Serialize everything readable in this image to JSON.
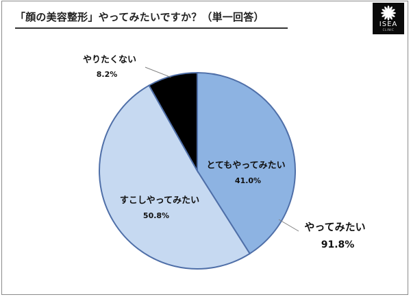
{
  "title": "「顔の美容整形」やってみたいですか？（単一回答）",
  "logo": {
    "text": "ISEA",
    "subtext": "CLINIC",
    "icon": "flower-icon"
  },
  "chart_data": {
    "type": "pie",
    "title": "「顔の美容整形」やってみたいですか？（単一回答）",
    "slices": [
      {
        "label": "とてもやってみたい",
        "value": 41.0,
        "value_label": "41.0%",
        "color": "#8db3e2"
      },
      {
        "label": "すこしやってみたい",
        "value": 50.8,
        "value_label": "50.8%",
        "color": "#c6d9f1"
      },
      {
        "label": "やりたくない",
        "value": 8.2,
        "value_label": "8.2%",
        "color": "#000000"
      }
    ],
    "group_annotation": {
      "label": "やってみたい",
      "value": 91.8,
      "value_label": "91.8%"
    },
    "start_angle": "12 o'clock",
    "direction": "clockwise",
    "slice_border_color": "#4f6fa8"
  }
}
